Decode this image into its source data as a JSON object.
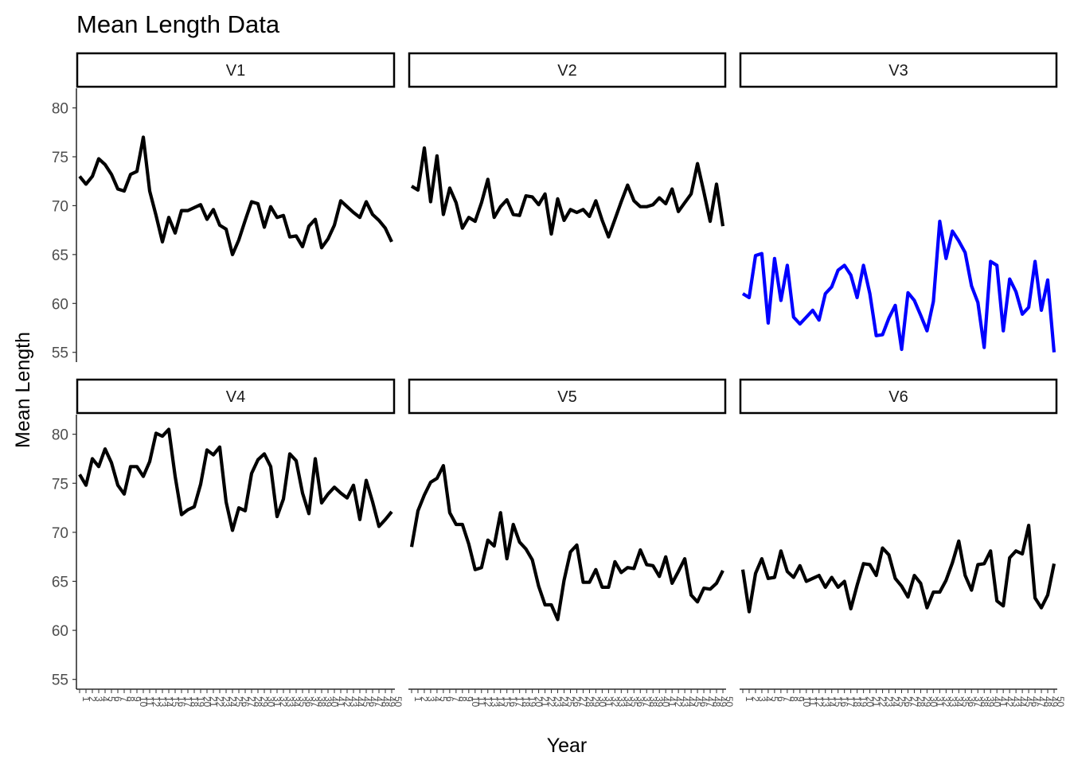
{
  "chart_data": {
    "type": "line",
    "title": "Mean Length Data",
    "xlabel": "Year",
    "ylabel": "Mean Length",
    "ylim": [
      54,
      82
    ],
    "yticks": [
      55,
      60,
      65,
      70,
      75,
      80
    ],
    "x": [
      1,
      2,
      3,
      4,
      5,
      6,
      7,
      8,
      9,
      10,
      11,
      12,
      13,
      14,
      15,
      16,
      17,
      18,
      19,
      20,
      21,
      22,
      23,
      24,
      25,
      26,
      27,
      28,
      29,
      30,
      31,
      32,
      33,
      34,
      35,
      36,
      37,
      38,
      39,
      40,
      41,
      42,
      43,
      44,
      45,
      46,
      47,
      48,
      49,
      50
    ],
    "xlim": [
      0.5,
      50.5
    ],
    "grid": false,
    "legend": "none",
    "colors": {
      "default": "#000000",
      "highlight": "#0000ff"
    },
    "series": [
      {
        "name": "V1",
        "color": "#000000",
        "values": [
          73.0,
          72.2,
          73.0,
          74.8,
          74.2,
          73.2,
          71.7,
          71.5,
          73.2,
          73.5,
          77.0,
          71.5,
          69.0,
          66.3,
          68.8,
          67.2,
          69.5,
          69.5,
          69.8,
          70.1,
          68.6,
          69.6,
          68.0,
          67.6,
          65.0,
          66.5,
          68.5,
          70.4,
          70.2,
          67.8,
          69.9,
          68.8,
          69.0,
          66.8,
          66.9,
          65.8,
          67.9,
          68.6,
          65.7,
          66.6,
          68.0,
          70.5,
          69.9,
          69.3,
          68.8,
          70.4,
          69.1,
          68.5,
          67.7,
          66.3
        ]
      },
      {
        "name": "V2",
        "color": "#000000",
        "values": [
          72.0,
          71.6,
          75.9,
          70.4,
          75.1,
          69.1,
          71.8,
          70.3,
          67.7,
          68.8,
          68.4,
          70.3,
          72.7,
          68.8,
          69.9,
          70.6,
          69.1,
          69.0,
          71.0,
          70.9,
          70.1,
          71.2,
          67.1,
          70.7,
          68.5,
          69.6,
          69.3,
          69.6,
          68.9,
          70.5,
          68.5,
          66.8,
          68.6,
          70.4,
          72.1,
          70.5,
          69.9,
          69.9,
          70.1,
          70.8,
          70.2,
          71.7,
          69.4,
          70.3,
          71.2,
          74.3,
          71.4,
          68.4,
          72.2,
          67.9
        ]
      },
      {
        "name": "V3",
        "color": "#0000ff",
        "values": [
          61.0,
          60.6,
          64.9,
          65.1,
          58.0,
          64.6,
          60.3,
          63.9,
          58.6,
          57.9,
          58.6,
          59.3,
          58.3,
          61.0,
          61.7,
          63.4,
          63.9,
          62.9,
          60.6,
          63.9,
          61.0,
          56.7,
          56.8,
          58.5,
          59.8,
          55.3,
          61.1,
          60.3,
          58.8,
          57.2,
          60.2,
          68.4,
          64.6,
          67.4,
          66.4,
          65.2,
          61.8,
          60.1,
          55.5,
          64.3,
          63.9,
          57.2,
          62.5,
          61.2,
          58.9,
          59.6,
          64.3,
          59.3,
          62.4,
          55.0
        ]
      },
      {
        "name": "V4",
        "color": "#000000",
        "values": [
          75.9,
          74.8,
          77.5,
          76.7,
          78.5,
          77.1,
          74.8,
          73.9,
          76.7,
          76.7,
          75.7,
          77.2,
          80.1,
          79.8,
          80.5,
          75.7,
          71.8,
          72.3,
          72.6,
          74.9,
          78.4,
          77.9,
          78.7,
          73.1,
          70.2,
          72.5,
          72.2,
          76.0,
          77.4,
          78.0,
          76.7,
          71.6,
          73.4,
          78.0,
          77.3,
          74.0,
          71.9,
          77.5,
          73.0,
          73.9,
          74.6,
          74.0,
          73.5,
          74.8,
          71.3,
          75.3,
          73.1,
          70.6,
          71.3,
          72.1
        ]
      },
      {
        "name": "V5",
        "color": "#000000",
        "values": [
          68.5,
          72.2,
          73.8,
          75.1,
          75.5,
          76.8,
          72.0,
          70.8,
          70.8,
          68.8,
          66.2,
          66.4,
          69.2,
          68.6,
          72.0,
          67.3,
          70.8,
          69.0,
          68.3,
          67.2,
          64.5,
          62.6,
          62.6,
          61.1,
          65.1,
          68.0,
          68.7,
          64.9,
          64.9,
          66.2,
          64.4,
          64.4,
          67.0,
          65.9,
          66.4,
          66.3,
          68.2,
          66.7,
          66.6,
          65.5,
          67.5,
          64.8,
          66.0,
          67.3,
          63.6,
          62.9,
          64.3,
          64.2,
          64.8,
          66.1
        ]
      },
      {
        "name": "V6",
        "color": "#000000",
        "values": [
          66.2,
          61.9,
          65.8,
          67.3,
          65.3,
          65.4,
          68.1,
          66.0,
          65.4,
          66.6,
          65.0,
          65.3,
          65.6,
          64.4,
          65.4,
          64.4,
          65.0,
          62.2,
          64.6,
          66.8,
          66.7,
          65.6,
          68.4,
          67.7,
          65.3,
          64.5,
          63.4,
          65.6,
          64.8,
          62.3,
          63.9,
          63.9,
          65.1,
          66.9,
          69.1,
          65.6,
          64.1,
          66.7,
          66.8,
          68.1,
          63.0,
          62.5,
          67.4,
          68.1,
          67.8,
          70.7,
          63.3,
          62.3,
          63.6,
          66.8
        ]
      }
    ]
  }
}
